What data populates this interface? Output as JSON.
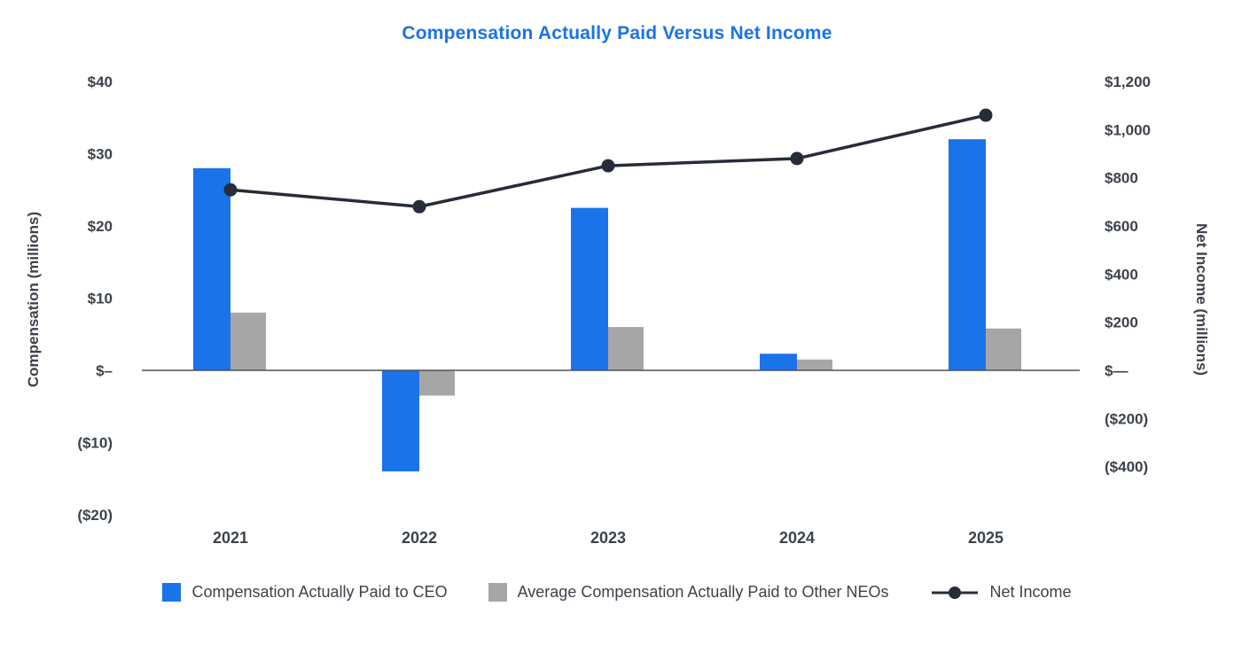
{
  "title": "Compensation Actually Paid Versus Net Income",
  "colors": {
    "title": "#1a73e8",
    "axis_text": "#3d434b",
    "axis_line": "#4d525a",
    "background": "#ffffff"
  },
  "chart_data": {
    "type": "bar+line",
    "title": "Compensation Actually Paid Versus Net Income",
    "categories": [
      "2021",
      "2022",
      "2023",
      "2024",
      "2025"
    ],
    "series": [
      {
        "name": "Compensation Actually Paid to CEO",
        "type": "bar",
        "axis": "left",
        "color": "#1a73e8",
        "values": [
          28,
          -14,
          22.5,
          2.3,
          32
        ]
      },
      {
        "name": "Average Compensation Actually Paid to Other NEOs",
        "type": "bar",
        "axis": "left",
        "color": "#a6a6a6",
        "values": [
          8,
          -3.5,
          6,
          1.5,
          5.8
        ]
      },
      {
        "name": "Net Income",
        "type": "line",
        "axis": "right",
        "color": "#262c38",
        "values": [
          750,
          680,
          850,
          880,
          1060
        ]
      }
    ],
    "left_axis": {
      "label": "Compensation (millions)",
      "range": [
        -20,
        40
      ],
      "ticks": [
        {
          "label": "$40",
          "value": 40
        },
        {
          "label": "$30",
          "value": 30
        },
        {
          "label": "$20",
          "value": 20
        },
        {
          "label": "$10",
          "value": 10
        },
        {
          "label": "$–",
          "value": 0
        },
        {
          "label": "($10)",
          "value": -10
        },
        {
          "label": "($20)",
          "value": -20
        }
      ]
    },
    "right_axis": {
      "label": "Net Income (millions)",
      "range": [
        -400,
        1200
      ],
      "ticks": [
        {
          "label": "$1,200",
          "value": 1200
        },
        {
          "label": "$1,000",
          "value": 1000
        },
        {
          "label": "$800",
          "value": 800
        },
        {
          "label": "$600",
          "value": 600
        },
        {
          "label": "$400",
          "value": 400
        },
        {
          "label": "$200",
          "value": 200
        },
        {
          "label": "$—",
          "value": 0
        },
        {
          "label": "($200)",
          "value": -200
        },
        {
          "label": "($400)",
          "value": -400
        }
      ]
    },
    "grid": false,
    "legend_position": "bottom"
  }
}
